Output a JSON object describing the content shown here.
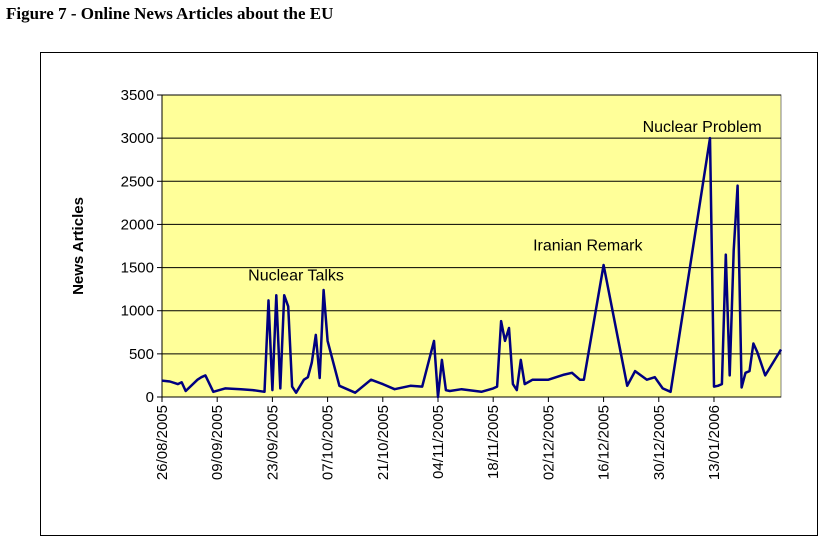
{
  "figure_title": "Figure 7 - Online News Articles about the EU",
  "colors": {
    "plot_background": "#ffff99",
    "line": "#000080",
    "grid": "#000000"
  },
  "chart_data": {
    "type": "line",
    "title": "",
    "xlabel": "",
    "ylabel": "News Articles",
    "ylim": [
      0,
      3500
    ],
    "yticks": [
      0,
      500,
      1000,
      1500,
      2000,
      2500,
      3000,
      3500
    ],
    "ytick_labels": [
      "0",
      "500",
      "1000",
      "1500",
      "2000",
      "2500",
      "3000",
      "3500"
    ],
    "xlim": [
      "2005-08-26",
      "2006-01-30"
    ],
    "xtick_labels": [
      "26/08/2005",
      "09/09/2005",
      "23/09/2005",
      "07/10/2005",
      "21/10/2005",
      "04/11/2005",
      "18/11/2005",
      "02/12/2005",
      "16/12/2005",
      "30/12/2005",
      "13/01/2006"
    ],
    "xtick_dates": [
      "2005-08-26",
      "2005-09-09",
      "2005-09-23",
      "2005-10-07",
      "2005-10-21",
      "2005-11-04",
      "2005-11-18",
      "2005-12-02",
      "2005-12-16",
      "2005-12-30",
      "2006-01-13"
    ],
    "grid": "horizontal",
    "legend": "none",
    "annotations": [
      {
        "text": "Nuclear Talks",
        "x": "2005-09-29",
        "y": 1350
      },
      {
        "text": "Iranian Remark",
        "x": "2005-12-12",
        "y": 1700
      },
      {
        "text": "Nuclear Problem",
        "x": "2006-01-10",
        "y": 3070
      }
    ],
    "series": [
      {
        "x": [
          "2005-08-26",
          "2005-08-28",
          "2005-08-30",
          "2005-08-31",
          "2005-09-01",
          "2005-09-04",
          "2005-09-05",
          "2005-09-06",
          "2005-09-08",
          "2005-09-11",
          "2005-09-15",
          "2005-09-18",
          "2005-09-21",
          "2005-09-22",
          "2005-09-23",
          "2005-09-24",
          "2005-09-25",
          "2005-09-26",
          "2005-09-27",
          "2005-09-28",
          "2005-09-29",
          "2005-10-01",
          "2005-10-02",
          "2005-10-03",
          "2005-10-04",
          "2005-10-05",
          "2005-10-06",
          "2005-10-07",
          "2005-10-10",
          "2005-10-14",
          "2005-10-18",
          "2005-10-21",
          "2005-10-24",
          "2005-10-28",
          "2005-10-31",
          "2005-11-03",
          "2005-11-04",
          "2005-11-05",
          "2005-11-06",
          "2005-11-07",
          "2005-11-10",
          "2005-11-15",
          "2005-11-18",
          "2005-11-19",
          "2005-11-20",
          "2005-11-21",
          "2005-11-22",
          "2005-11-23",
          "2005-11-24",
          "2005-11-25",
          "2005-11-26",
          "2005-11-28",
          "2005-12-02",
          "2005-12-06",
          "2005-12-08",
          "2005-12-10",
          "2005-12-11",
          "2005-12-16",
          "2005-12-22",
          "2005-12-24",
          "2005-12-27",
          "2005-12-29",
          "2005-12-31",
          "2006-01-02",
          "2006-01-12",
          "2006-01-13",
          "2006-01-14",
          "2006-01-15",
          "2006-01-16",
          "2006-01-17",
          "2006-01-18",
          "2006-01-19",
          "2006-01-20",
          "2006-01-21",
          "2006-01-22",
          "2006-01-23",
          "2006-01-24",
          "2006-01-26",
          "2006-01-28",
          "2006-01-30"
        ],
        "y": [
          190,
          180,
          150,
          170,
          70,
          200,
          230,
          250,
          60,
          100,
          90,
          80,
          60,
          1120,
          80,
          1180,
          100,
          1180,
          1050,
          120,
          50,
          200,
          230,
          400,
          720,
          220,
          1240,
          650,
          130,
          50,
          200,
          150,
          90,
          130,
          120,
          650,
          0,
          430,
          80,
          70,
          90,
          60,
          100,
          120,
          880,
          650,
          800,
          150,
          80,
          430,
          150,
          200,
          200,
          260,
          280,
          200,
          200,
          1530,
          130,
          300,
          200,
          230,
          100,
          60,
          3000,
          120,
          130,
          150,
          1650,
          250,
          1700,
          2450,
          110,
          280,
          300,
          620,
          520,
          250,
          400,
          550
        ]
      }
    ]
  }
}
